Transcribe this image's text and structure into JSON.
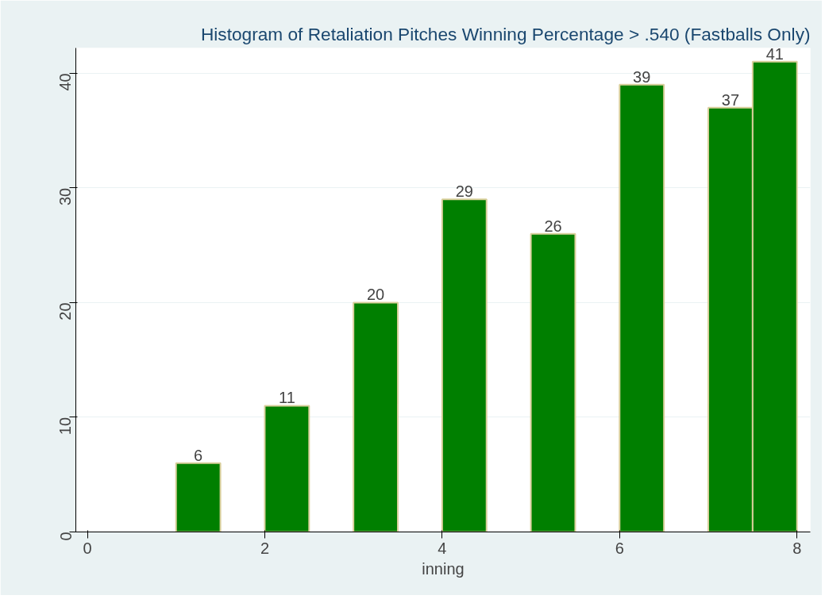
{
  "chart_data": {
    "type": "histogram",
    "title": "Histogram of Retaliation Pitches Winning Percentage > .540 (Fastballs Only)",
    "xlabel": "inning",
    "bins": [
      1,
      1.5,
      2,
      2.5,
      3,
      3.5,
      4,
      4.5,
      5,
      5.5,
      6,
      6.5,
      7,
      7.5,
      8
    ],
    "values": [
      6,
      0,
      11,
      0,
      20,
      0,
      29,
      0,
      26,
      0,
      39,
      0,
      37,
      41
    ],
    "value_labels": [
      "6",
      null,
      "11",
      null,
      "20",
      null,
      "29",
      null,
      "26",
      null,
      "39",
      null,
      "37",
      "41"
    ],
    "color": "#007f00",
    "xlim": [
      -0.13,
      8.15
    ],
    "ylim": [
      0,
      42.2
    ],
    "xticks": [
      0,
      2,
      4,
      6,
      8
    ],
    "yticks": [
      0,
      10,
      20,
      30,
      40
    ],
    "grid": "y"
  }
}
